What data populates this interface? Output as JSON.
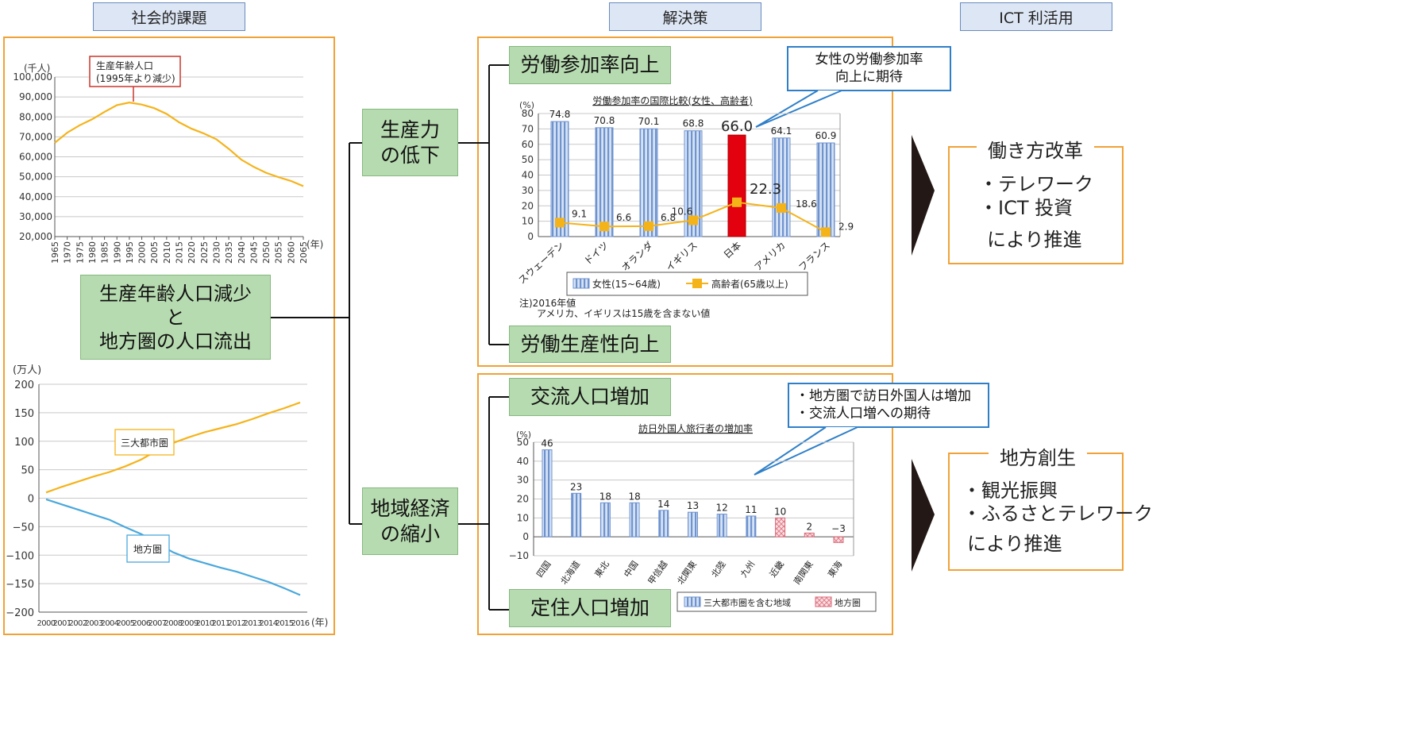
{
  "headers": {
    "left": "社会的課題",
    "middle": "解決策",
    "right": "ICT 利活用"
  },
  "center_box": {
    "line1": "生産年齢人口減少",
    "line2": "と",
    "line3": "地方圏の人口流出"
  },
  "mid_boxes": {
    "productivity": [
      "生産力",
      "の低下"
    ],
    "regional": [
      "地域経済",
      "の縮小"
    ]
  },
  "solutions": {
    "labor_participation": "労働参加率向上",
    "labor_productivity": "労働生産性向上",
    "exchange_population": "交流人口増加",
    "settled_population": "定住人口増加"
  },
  "callouts": {
    "women": [
      "女性の労働参加率",
      "向上に期待"
    ],
    "regional": [
      "・地方圏で訪日外国人は増加",
      "・交流人口増への期待"
    ]
  },
  "ict": {
    "work_style": {
      "title": "働き方改革",
      "items": [
        "・テレワーク",
        "・ICT 投資"
      ],
      "footer": "により推進"
    },
    "regional": {
      "title": "地方創生",
      "items": [
        "・観光振興",
        "・ふるさとテレワーク"
      ],
      "footer": "により推進"
    }
  },
  "colors": {
    "panel_border": "#f0a236",
    "green_box": "#b7dbb0",
    "callout_border": "#2f7fc8",
    "line_orange": "#f5b31a",
    "line_blue": "#4aa8dc",
    "bar_blue": "#a9c2e6",
    "bar_red": "#e3000f",
    "bar_pink": "#f6c6cc"
  },
  "chart_data": [
    {
      "type": "line",
      "title": "",
      "ylabel": "(千人)",
      "xlabel": "(年)",
      "ylim": [
        20000,
        100000
      ],
      "yticks": [
        "20,000",
        "30,000",
        "40,000",
        "50,000",
        "60,000",
        "70,000",
        "80,000",
        "90,000",
        "100,000"
      ],
      "ytick_values": [
        20000,
        30000,
        40000,
        50000,
        60000,
        70000,
        80000,
        90000,
        100000
      ],
      "categories": [
        "1965",
        "1970",
        "1975",
        "1980",
        "1985",
        "1990",
        "1995",
        "2000",
        "2005",
        "2010",
        "2015",
        "2020",
        "2025",
        "2030",
        "2035",
        "2040",
        "2045",
        "2050",
        "2055",
        "2060",
        "2065"
      ],
      "series": [
        {
          "values": [
            67000,
            72100,
            75800,
            78800,
            82500,
            85900,
            87200,
            86200,
            84400,
            81500,
            77300,
            74100,
            71700,
            68800,
            64000,
            58600,
            55000,
            52000,
            49800,
            47900,
            45300
          ]
        }
      ],
      "annotation": [
        "生産年齢人口",
        "(1995年より減少)"
      ],
      "grid": true
    },
    {
      "type": "line",
      "title": "",
      "ylabel": "(万人)",
      "xlabel": "(年)",
      "ylim": [
        -200,
        200
      ],
      "yticks": [
        "−200",
        "−150",
        "−100",
        "−50",
        "0",
        "50",
        "100",
        "150",
        "200"
      ],
      "ytick_values": [
        -200,
        -150,
        -100,
        -50,
        0,
        50,
        100,
        150,
        200
      ],
      "categories": [
        "2000",
        "2001",
        "2002",
        "2003",
        "2004",
        "2005",
        "2006",
        "2007",
        "2008",
        "2009",
        "2010",
        "2011",
        "2012",
        "2013",
        "2014",
        "2015",
        "2016"
      ],
      "series": [
        {
          "name": "三大都市圏",
          "values": [
            10,
            20,
            29,
            38,
            46,
            56,
            68,
            84,
            97,
            107,
            116,
            123,
            130,
            139,
            149,
            158,
            168
          ]
        },
        {
          "name": "地方圏",
          "values": [
            -2,
            -11,
            -20,
            -29,
            -38,
            -51,
            -63,
            -79,
            -95,
            -106,
            -114,
            -122,
            -129,
            -138,
            -147,
            -158,
            -170
          ]
        }
      ],
      "grid": true
    },
    {
      "type": "bar",
      "title": "労働参加率の国際比較(女性、高齢者)",
      "ylabel": "(%)",
      "ylim": [
        0,
        80
      ],
      "yticks": [
        "0",
        "10",
        "20",
        "30",
        "40",
        "50",
        "60",
        "70",
        "80"
      ],
      "ytick_values": [
        0,
        10,
        20,
        30,
        40,
        50,
        60,
        70,
        80
      ],
      "categories": [
        "スウェーデン",
        "ドイツ",
        "オランダ",
        "イギリス",
        "日本",
        "アメリカ",
        "フランス"
      ],
      "series": [
        {
          "name": "女性(15~64歳)",
          "values": [
            74.8,
            70.8,
            70.1,
            68.8,
            66.0,
            64.1,
            60.9
          ],
          "labels": [
            "74.8",
            "70.8",
            "70.1",
            "68.8",
            "66.0",
            "64.1",
            "60.9"
          ]
        },
        {
          "name": "高齢者(65歳以上)",
          "values": [
            9.1,
            6.6,
            6.8,
            10.6,
            22.3,
            18.6,
            2.9
          ],
          "labels": [
            "9.1",
            "6.6",
            "6.8",
            "10.6",
            "22.3",
            "18.6",
            "2.9"
          ]
        }
      ],
      "highlight_category": "日本",
      "notes": [
        "注)2016年値",
        "アメリカ、イギリスは15歳を含まない値"
      ],
      "legend_position": "bottom"
    },
    {
      "type": "bar",
      "title": "訪日外国人旅行者の増加率",
      "ylabel": "(%)",
      "ylim": [
        -10,
        50
      ],
      "yticks": [
        "−10",
        "0",
        "10",
        "20",
        "30",
        "40",
        "50"
      ],
      "ytick_values": [
        -10,
        0,
        10,
        20,
        30,
        40,
        50
      ],
      "categories": [
        "四国",
        "北海道",
        "東北",
        "中国",
        "甲信越",
        "北関東",
        "北陸",
        "九州",
        "近畿",
        "南関東",
        "東海"
      ],
      "values": [
        46,
        23,
        18,
        18,
        14,
        13,
        12,
        11,
        10,
        2,
        -3
      ],
      "labels": [
        "46",
        "23",
        "18",
        "18",
        "14",
        "13",
        "12",
        "11",
        "10",
        "2",
        "−3"
      ],
      "groups": [
        "三大都市圏を含む地域",
        "三大都市圏を含む地域",
        "三大都市圏を含む地域",
        "三大都市圏を含む地域",
        "三大都市圏を含む地域",
        "三大都市圏を含む地域",
        "三大都市圏を含む地域",
        "三大都市圏を含む地域",
        "地方圏",
        "地方圏",
        "地方圏"
      ],
      "legend": [
        "三大都市圏を含む地域",
        "地方圏"
      ],
      "legend_position": "bottom-right"
    }
  ]
}
